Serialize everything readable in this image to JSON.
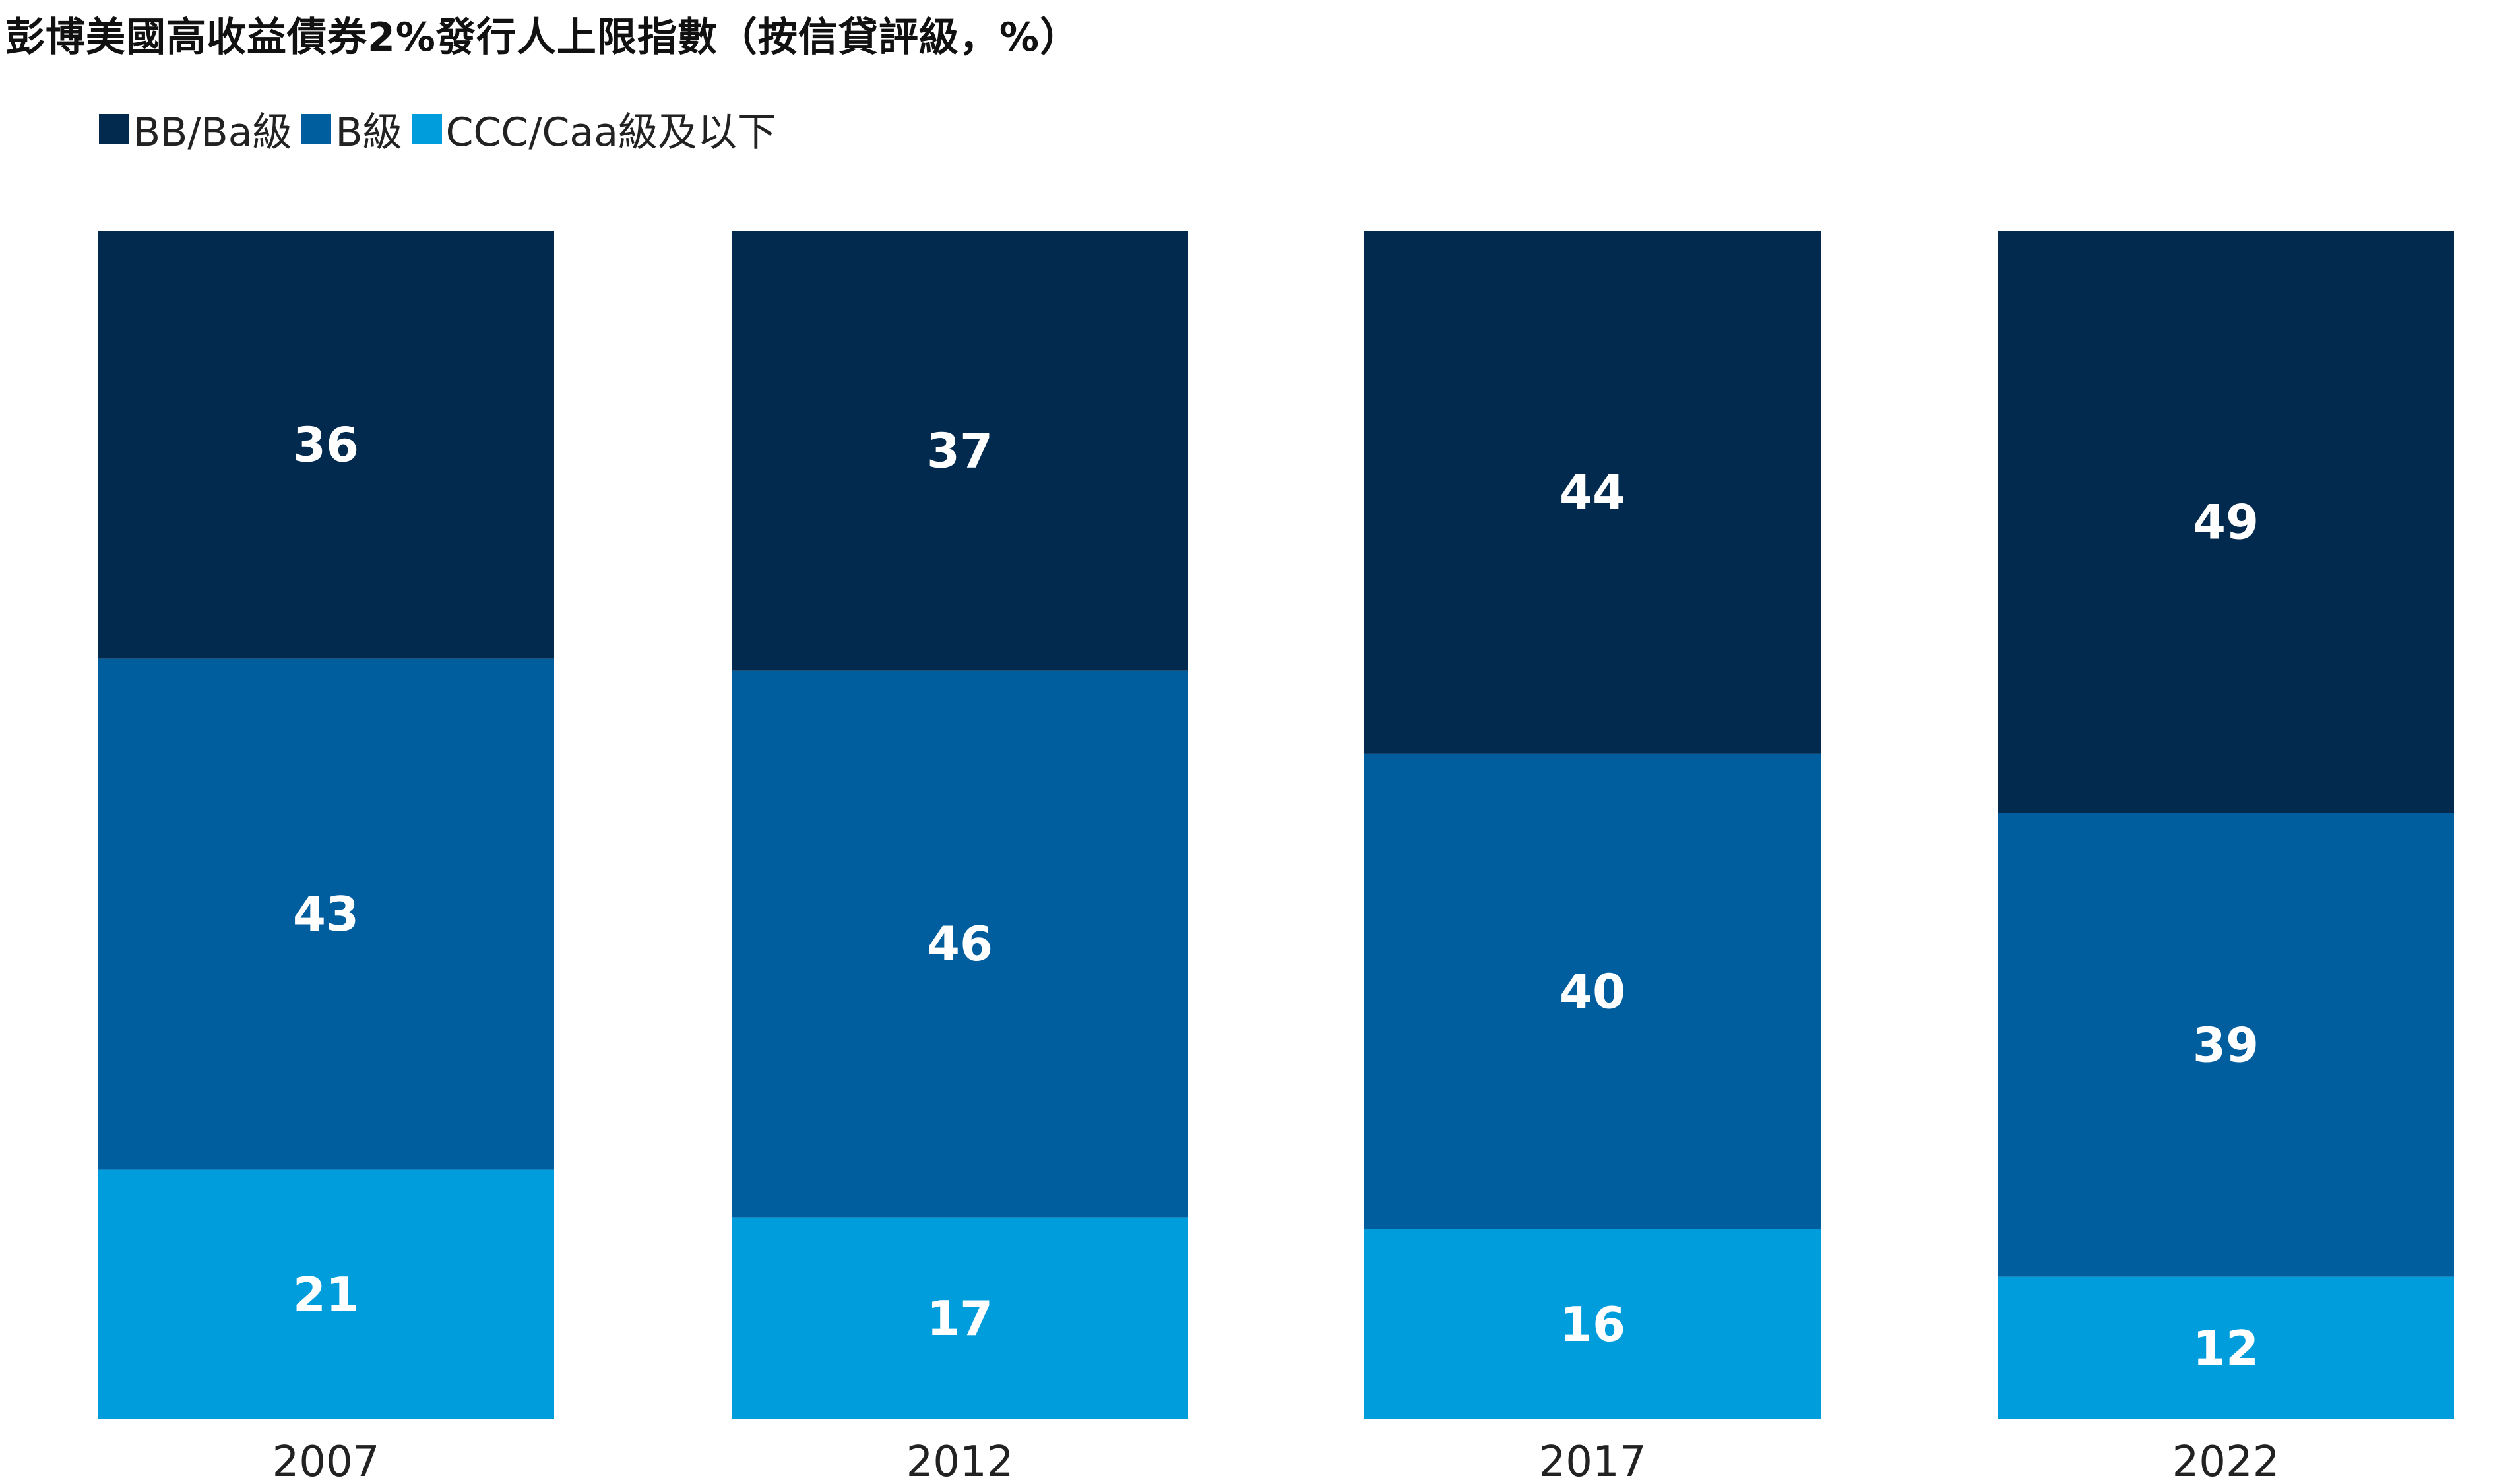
{
  "chart_data": {
    "type": "bar",
    "stacked": true,
    "title": "彭博美國高收益債券2%發行人上限指數（按信貸評級，%）",
    "categories": [
      "2007",
      "2012",
      "2017",
      "2022"
    ],
    "series": [
      {
        "name": "BB/Ba級",
        "color": "#022a4e",
        "values": [
          36,
          37,
          44,
          49
        ]
      },
      {
        "name": "B級",
        "color": "#005e9e",
        "values": [
          43,
          46,
          40,
          39
        ]
      },
      {
        "name": "CCC/Caa級及以下",
        "color": "#009ddc",
        "values": [
          21,
          17,
          16,
          12
        ]
      }
    ],
    "ylim": [
      0,
      100
    ],
    "grid": false,
    "legend_position": "top-left"
  }
}
